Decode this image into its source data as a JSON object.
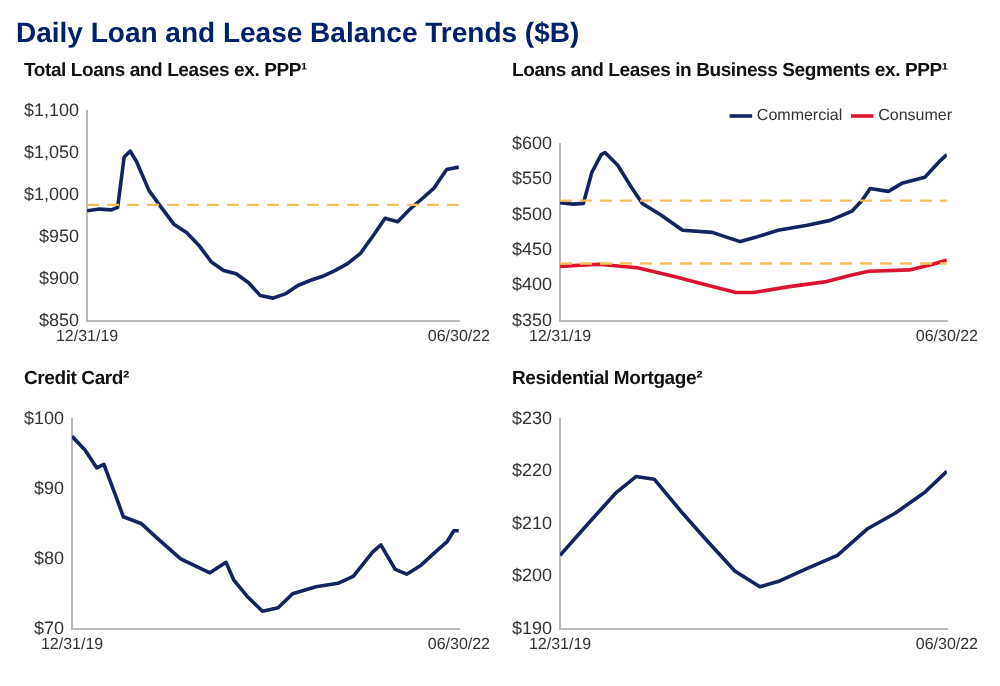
{
  "chart_data": [
    {
      "type": "line",
      "title": "Total Loans and Leases ex. PPP¹",
      "annotations": [
        "Daily Loan and Lease Balance Trends ($B)"
      ],
      "x": [
        "2019-12-31",
        "2020-01-31",
        "2020-02-29",
        "2020-03-15",
        "2020-03-31",
        "2020-04-15",
        "2020-04-30",
        "2020-05-31",
        "2020-06-30",
        "2020-07-31",
        "2020-08-31",
        "2020-09-30",
        "2020-10-31",
        "2020-11-30",
        "2020-12-31",
        "2021-01-31",
        "2021-02-28",
        "2021-03-31",
        "2021-04-30",
        "2021-05-31",
        "2021-06-30",
        "2021-07-31",
        "2021-08-31",
        "2021-09-30",
        "2021-10-31",
        "2021-11-30",
        "2021-12-31",
        "2022-01-31",
        "2022-02-28",
        "2022-03-31",
        "2022-04-30",
        "2022-05-31",
        "2022-06-30"
      ],
      "series": [
        {
          "color": "#13245e",
          "values": [
            981,
            983,
            982,
            985,
            1045,
            1052,
            1040,
            1005,
            985,
            965,
            955,
            940,
            920,
            910,
            906,
            895,
            880,
            877,
            882,
            892,
            898,
            903,
            910,
            918,
            930,
            950,
            972,
            968,
            982,
            995,
            1008,
            1030,
            1033
          ]
        }
      ],
      "ref_lines": [
        {
          "axis": "y",
          "value": 988,
          "color": "#f0c060",
          "line_style": "dashed"
        }
      ],
      "xlim": [
        "2019-12-31",
        "2022-06-30"
      ],
      "xticks": [
        {
          "value": "2019-12-31",
          "label": "12/31/19"
        },
        {
          "value": "2022-06-30",
          "label": "06/30/22"
        }
      ],
      "ylim": [
        850,
        1100
      ],
      "yticks": [
        {
          "value": 850,
          "label": "$850"
        },
        {
          "value": 900,
          "label": "$900"
        },
        {
          "value": 950,
          "label": "$950"
        },
        {
          "value": 1000,
          "label": "$1,000"
        },
        {
          "value": 1050,
          "label": "$1,050"
        },
        {
          "value": 1100,
          "label": "$1,100"
        }
      ],
      "grid": false,
      "legend": false,
      "marker": "none",
      "line_style": "solid"
    },
    {
      "type": "line",
      "title": "Loans and Leases in Business Segments ex. PPP¹",
      "series": [
        {
          "name": "Commercial",
          "color": "#13245e",
          "x": [
            "2019-12-31",
            "2020-01-31",
            "2020-02-24",
            "2020-03-15",
            "2020-04-06",
            "2020-04-15",
            "2020-05-15",
            "2020-06-15",
            "2020-07-12",
            "2020-08-24",
            "2020-10-15",
            "2020-12-24",
            "2021-01-28",
            "2021-02-28",
            "2021-04-05",
            "2021-05-28",
            "2021-08-05",
            "2021-09-28",
            "2021-11-18",
            "2021-12-12",
            "2021-12-31",
            "2022-02-12",
            "2022-03-18",
            "2022-05-09",
            "2022-06-12",
            "2022-06-30"
          ],
          "values": [
            517,
            515,
            516,
            560,
            585,
            588,
            570,
            540,
            516,
            500,
            478,
            475,
            468,
            462,
            468,
            478,
            485,
            492,
            505,
            520,
            537,
            533,
            545,
            553,
            575,
            585
          ]
        },
        {
          "name": "Consumer",
          "color": "#dc1431",
          "x": [
            "2019-12-31",
            "2020-03-31",
            "2020-06-30",
            "2020-09-30",
            "2020-10-31",
            "2020-12-15",
            "2021-02-18",
            "2021-03-31",
            "2021-06-20",
            "2021-09-15",
            "2021-11-20",
            "2021-12-28",
            "2022-04-03",
            "2022-05-28",
            "2022-06-30"
          ],
          "values": [
            427,
            430,
            425,
            412,
            407,
            400,
            390,
            390,
            398,
            405,
            415,
            420,
            422,
            430,
            436
          ]
        }
      ],
      "ref_lines": [
        {
          "axis": "y",
          "value": 520,
          "color": "#f0c060",
          "line_style": "dashed"
        },
        {
          "axis": "y",
          "value": 431,
          "color": "#f0c060",
          "line_style": "dashed"
        }
      ],
      "xlim": [
        "2019-12-31",
        "2022-06-30"
      ],
      "xticks": [
        {
          "value": "2019-12-31",
          "label": "12/31/19"
        },
        {
          "value": "2022-06-30",
          "label": "06/30/22"
        }
      ],
      "ylim": [
        350,
        600
      ],
      "yticks": [
        {
          "value": 350,
          "label": "$350"
        },
        {
          "value": 400,
          "label": "$400"
        },
        {
          "value": 450,
          "label": "$450"
        },
        {
          "value": 500,
          "label": "$500"
        },
        {
          "value": 550,
          "label": "$550"
        },
        {
          "value": 600,
          "label": "$600"
        }
      ],
      "grid": false,
      "legend": "top right",
      "marker": "none",
      "line_style": "solid"
    },
    {
      "type": "line",
      "title": "Credit Card²",
      "x": [
        "2019-12-31",
        "2020-01-31",
        "2020-02-27",
        "2020-03-15",
        "2020-04-12",
        "2020-04-30",
        "2020-06-12",
        "2020-07-18",
        "2020-09-12",
        "2020-11-20",
        "2020-12-28",
        "2021-01-15",
        "2021-02-18",
        "2021-03-24",
        "2021-04-30",
        "2021-06-03",
        "2021-07-28",
        "2021-09-18",
        "2021-10-24",
        "2021-12-09",
        "2021-12-28",
        "2022-01-31",
        "2022-02-27",
        "2022-03-31",
        "2022-05-06",
        "2022-06-03",
        "2022-06-18",
        "2022-06-30"
      ],
      "series": [
        {
          "color": "#13245e",
          "values": [
            97.5,
            95.5,
            93,
            93.5,
            89,
            86,
            85,
            83,
            80,
            78,
            79.5,
            77,
            74.5,
            72.5,
            73,
            75,
            76,
            76.5,
            77.5,
            81,
            82,
            78.5,
            77.8,
            79,
            81,
            82.5,
            84,
            84
          ]
        }
      ],
      "xlim": [
        "2019-12-31",
        "2022-06-30"
      ],
      "xticks": [
        {
          "value": "2019-12-31",
          "label": "12/31/19"
        },
        {
          "value": "2022-06-30",
          "label": "06/30/22"
        }
      ],
      "ylim": [
        70,
        100
      ],
      "yticks": [
        {
          "value": 70,
          "label": "$70"
        },
        {
          "value": 80,
          "label": "$80"
        },
        {
          "value": 90,
          "label": "$90"
        },
        {
          "value": 100,
          "label": "$100"
        }
      ],
      "grid": false,
      "legend": false,
      "marker": "none",
      "line_style": "solid"
    },
    {
      "type": "line",
      "title": "Residential Mortgage²",
      "x": [
        "2019-12-31",
        "2020-03-06",
        "2020-05-12",
        "2020-06-27",
        "2020-08-09",
        "2020-10-15",
        "2020-12-09",
        "2021-02-15",
        "2021-04-15",
        "2021-05-28",
        "2021-08-05",
        "2021-10-15",
        "2021-12-24",
        "2022-02-28",
        "2022-05-09",
        "2022-06-30"
      ],
      "series": [
        {
          "color": "#13245e",
          "values": [
            204,
            210,
            216,
            219,
            218.5,
            212,
            207,
            201,
            198,
            199,
            201.5,
            204,
            209,
            212,
            216,
            220
          ]
        }
      ],
      "xlim": [
        "2019-12-31",
        "2022-06-30"
      ],
      "xticks": [
        {
          "value": "2019-12-31",
          "label": "12/31/19"
        },
        {
          "value": "2022-06-30",
          "label": "06/30/22"
        }
      ],
      "ylim": [
        190,
        230
      ],
      "yticks": [
        {
          "value": 190,
          "label": "$190"
        },
        {
          "value": 200,
          "label": "$200"
        },
        {
          "value": 210,
          "label": "$210"
        },
        {
          "value": 220,
          "label": "$220"
        },
        {
          "value": 230,
          "label": "$230"
        }
      ],
      "grid": false,
      "legend": false,
      "marker": "none",
      "line_style": "solid"
    }
  ]
}
